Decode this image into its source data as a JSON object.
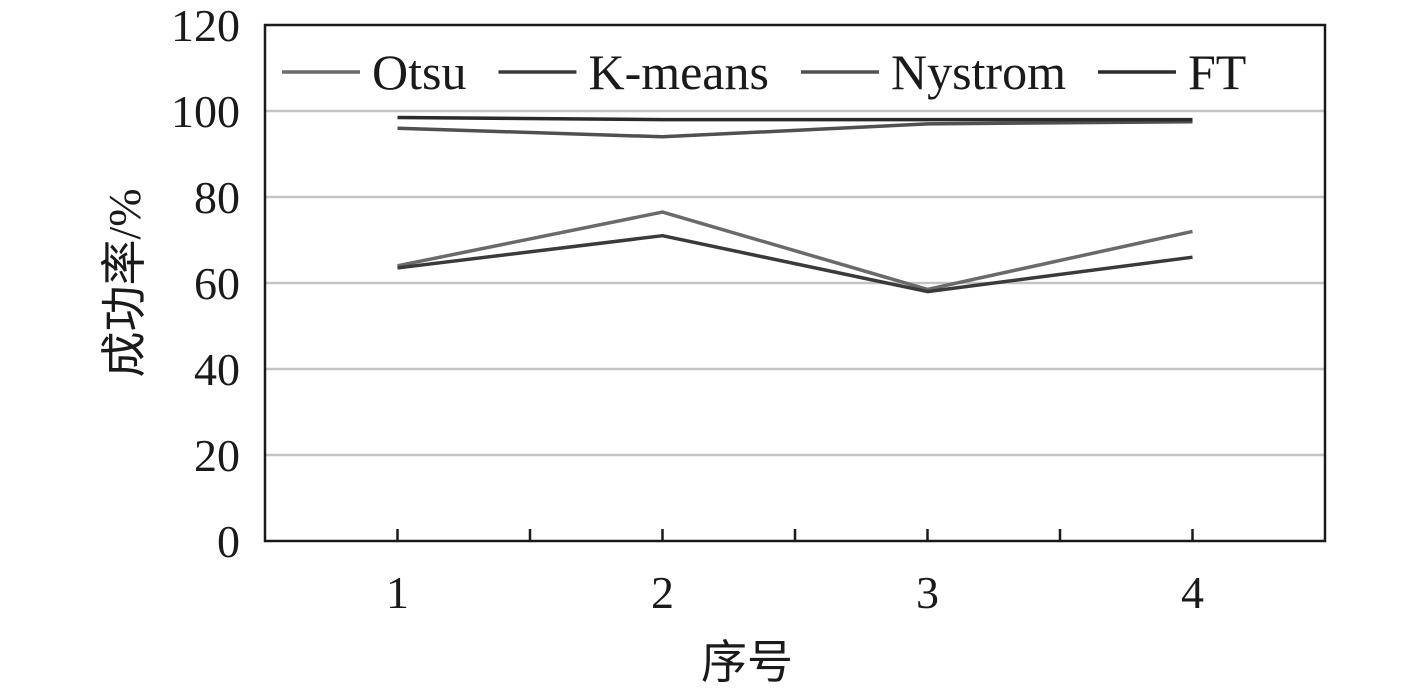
{
  "chart_data": {
    "type": "line",
    "x": [
      1,
      2,
      3,
      4
    ],
    "xlabel": "序号",
    "ylabel": "成功率/%",
    "xlim": [
      0.5,
      4.5
    ],
    "ylim": [
      0,
      120
    ],
    "yticks": [
      0,
      20,
      40,
      60,
      80,
      100,
      120
    ],
    "grid": true,
    "legend_position": "top",
    "series": [
      {
        "name": "Otsu",
        "color": "#6a6a6a",
        "values": [
          64,
          76.5,
          58.5,
          72
        ]
      },
      {
        "name": "K-means",
        "color": "#3a3a3a",
        "values": [
          63.5,
          71,
          58,
          66
        ]
      },
      {
        "name": "Nystrom",
        "color": "#505050",
        "values": [
          96,
          94,
          97,
          97.5
        ]
      },
      {
        "name": "FT",
        "color": "#2a2a2a",
        "values": [
          98.5,
          98,
          98,
          98
        ]
      }
    ]
  }
}
